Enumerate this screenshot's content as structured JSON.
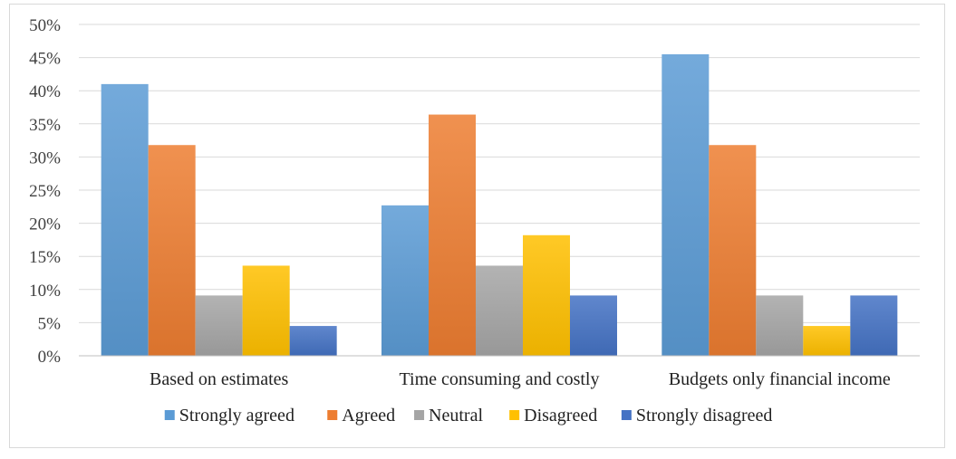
{
  "chart_data": {
    "type": "bar",
    "categories": [
      "Based on estimates",
      "Time consuming and costly",
      "Budgets only financial income"
    ],
    "series": [
      {
        "name": "Strongly agreed",
        "values": [
          41,
          22.7,
          45.5
        ],
        "color": "#5b9bd5"
      },
      {
        "name": "Agreed",
        "values": [
          31.8,
          36.4,
          31.8
        ],
        "color": "#ed7d31"
      },
      {
        "name": "Neutral",
        "values": [
          9.1,
          13.6,
          9.1
        ],
        "color": "#a5a5a5"
      },
      {
        "name": "Disagreed",
        "values": [
          13.6,
          18.2,
          4.5
        ],
        "color": "#ffc000"
      },
      {
        "name": "Strongly disagreed",
        "values": [
          4.5,
          9.1,
          9.1
        ],
        "color": "#4472c4"
      }
    ],
    "ylim": [
      0,
      50
    ],
    "yticks": [
      "0%",
      "5%",
      "10%",
      "15%",
      "20%",
      "25%",
      "30%",
      "35%",
      "40%",
      "45%",
      "50%"
    ],
    "ytick_values": [
      0,
      5,
      10,
      15,
      20,
      25,
      30,
      35,
      40,
      45,
      50
    ],
    "grid": true,
    "legend_position": "bottom"
  }
}
